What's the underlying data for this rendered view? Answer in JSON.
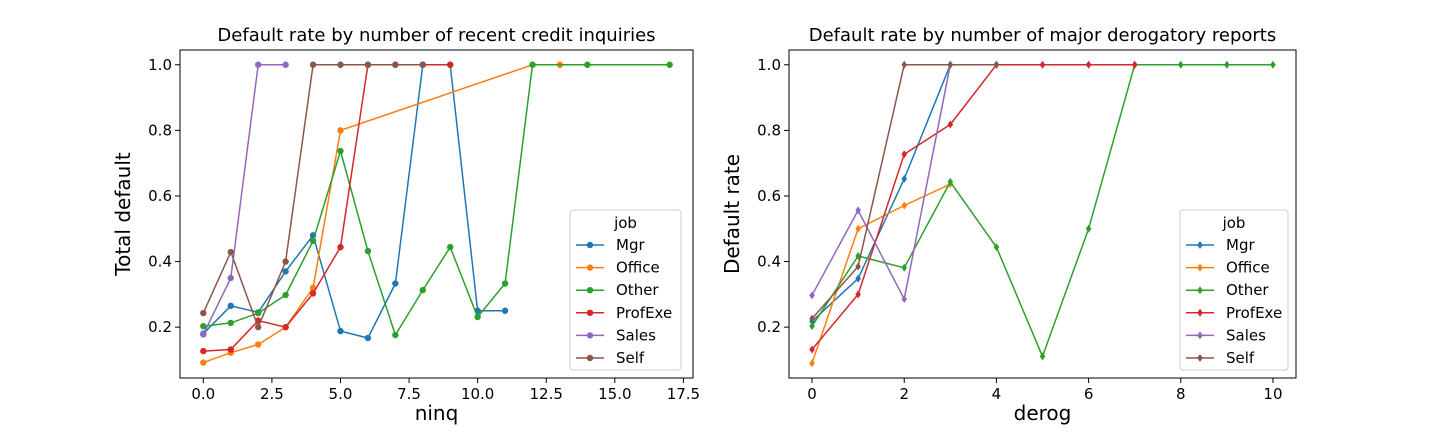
{
  "chart_data": [
    {
      "type": "line",
      "title": "Default rate by number of recent credit inquiries",
      "xlabel": "ninq",
      "ylabel": "Total default",
      "xlim": [
        -0.85,
        17.85
      ],
      "ylim": [
        0.045,
        1.045
      ],
      "xticks": [
        0.0,
        2.5,
        5.0,
        7.5,
        10.0,
        12.5,
        15.0,
        17.5
      ],
      "xtick_labels": [
        "0.0",
        "2.5",
        "5.0",
        "7.5",
        "10.0",
        "12.5",
        "15.0",
        "17.5"
      ],
      "yticks": [
        0.2,
        0.4,
        0.6,
        0.8,
        1.0
      ],
      "ytick_labels": [
        "0.2",
        "0.4",
        "0.6",
        "0.8",
        "1.0"
      ],
      "marker": "circle",
      "legend": {
        "title": "job",
        "position": "lower-right"
      },
      "series": [
        {
          "name": "Mgr",
          "color": "#1f77b4",
          "x": [
            0,
            1,
            2,
            3,
            4,
            5,
            6,
            7,
            8,
            9,
            10,
            11
          ],
          "y": [
            0.18,
            0.265,
            0.245,
            0.37,
            0.48,
            0.188,
            0.167,
            0.333,
            1.0,
            1.0,
            0.25,
            0.25
          ]
        },
        {
          "name": "Office",
          "color": "#ff7f0e",
          "x": [
            0,
            1,
            2,
            3,
            4,
            5,
            12,
            13
          ],
          "y": [
            0.092,
            0.122,
            0.147,
            0.2,
            0.32,
            0.8,
            1.0,
            1.0
          ]
        },
        {
          "name": "Other",
          "color": "#2ca02c",
          "x": [
            0,
            1,
            2,
            3,
            4,
            5,
            6,
            7,
            8,
            9,
            10,
            11,
            12,
            14,
            17
          ],
          "y": [
            0.203,
            0.213,
            0.243,
            0.298,
            0.463,
            0.737,
            0.432,
            0.176,
            0.313,
            0.444,
            0.231,
            0.333,
            1.0,
            1.0,
            1.0
          ]
        },
        {
          "name": "ProfExe",
          "color": "#d62728",
          "x": [
            0,
            1,
            2,
            3,
            4,
            5,
            6,
            7,
            8,
            9
          ],
          "y": [
            0.127,
            0.132,
            0.22,
            0.2,
            0.303,
            0.444,
            1.0,
            1.0,
            1.0,
            1.0
          ]
        },
        {
          "name": "Sales",
          "color": "#9467bd",
          "x": [
            0,
            1,
            2,
            3
          ],
          "y": [
            0.178,
            0.35,
            1.0,
            1.0
          ]
        },
        {
          "name": "Self",
          "color": "#8c564b",
          "x": [
            0,
            1,
            2,
            3,
            4,
            5,
            6,
            7,
            8
          ],
          "y": [
            0.243,
            0.429,
            0.2,
            0.4,
            1.0,
            1.0,
            1.0,
            1.0,
            1.0
          ]
        }
      ]
    },
    {
      "type": "line",
      "title": "Default rate by number of major derogatory reports",
      "xlabel": "derog",
      "ylabel": "Default rate",
      "xlim": [
        -0.5,
        10.5
      ],
      "ylim": [
        0.045,
        1.045
      ],
      "xticks": [
        0,
        2,
        4,
        6,
        8,
        10
      ],
      "xtick_labels": [
        "0",
        "2",
        "4",
        "6",
        "8",
        "10"
      ],
      "yticks": [
        0.2,
        0.4,
        0.6,
        0.8,
        1.0
      ],
      "ytick_labels": [
        "0.2",
        "0.4",
        "0.6",
        "0.8",
        "1.0"
      ],
      "marker": "diamond",
      "legend": {
        "title": "job",
        "position": "lower-right"
      },
      "series": [
        {
          "name": "Mgr",
          "color": "#1f77b4",
          "x": [
            0,
            1,
            2,
            3,
            4
          ],
          "y": [
            0.218,
            0.348,
            0.652,
            1.0,
            1.0
          ]
        },
        {
          "name": "Office",
          "color": "#ff7f0e",
          "x": [
            0,
            1,
            2,
            3
          ],
          "y": [
            0.09,
            0.5,
            0.571,
            0.636
          ]
        },
        {
          "name": "Other",
          "color": "#2ca02c",
          "x": [
            0,
            1,
            2,
            3,
            4,
            5,
            6,
            7,
            8,
            9,
            10
          ],
          "y": [
            0.203,
            0.417,
            0.381,
            0.643,
            0.444,
            0.111,
            0.5,
            1.0,
            1.0,
            1.0,
            1.0
          ]
        },
        {
          "name": "ProfExe",
          "color": "#d62728",
          "x": [
            0,
            1,
            2,
            3,
            4,
            5,
            6,
            7
          ],
          "y": [
            0.132,
            0.3,
            0.727,
            0.818,
            1.0,
            1.0,
            1.0,
            1.0
          ]
        },
        {
          "name": "Sales",
          "color": "#9467bd",
          "x": [
            0,
            1,
            2,
            3
          ],
          "y": [
            0.297,
            0.556,
            0.286,
            1.0
          ]
        },
        {
          "name": "Self",
          "color": "#8c564b",
          "x": [
            0,
            1,
            2,
            3,
            4
          ],
          "y": [
            0.226,
            0.385,
            1.0,
            1.0,
            1.0
          ]
        }
      ]
    }
  ]
}
